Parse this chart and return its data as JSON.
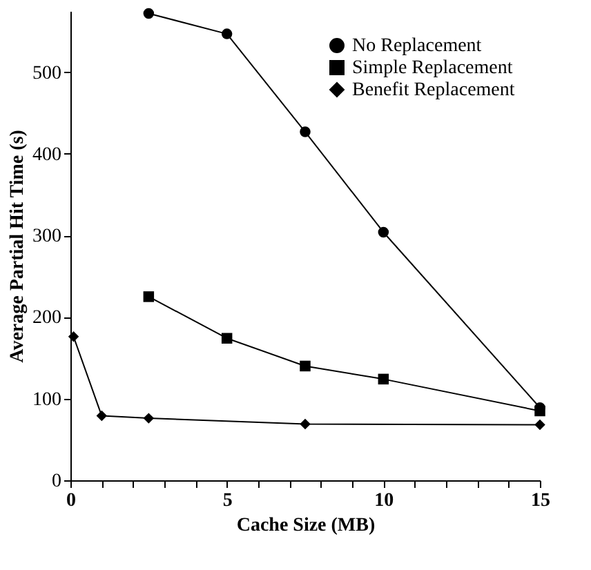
{
  "chart_data": {
    "type": "line",
    "xlabel": "Cache Size (MB)",
    "ylabel": "Average Partial Hit Time (s)",
    "xlim": [
      0,
      15
    ],
    "ylim": [
      0,
      575
    ],
    "xticks": [
      0,
      {
        "value": 1,
        "label": null
      },
      {
        "value": 2,
        "label": null
      },
      {
        "value": 3,
        "label": null
      },
      {
        "value": 4,
        "label": null
      },
      5,
      {
        "value": 6,
        "label": null
      },
      {
        "value": 7,
        "label": null
      },
      {
        "value": 8,
        "label": null
      },
      {
        "value": 9,
        "label": null
      },
      10,
      {
        "value": 11,
        "label": null
      },
      {
        "value": 12,
        "label": null
      },
      {
        "value": 13,
        "label": null
      },
      {
        "value": 14,
        "label": null
      },
      15
    ],
    "yticks": [
      0,
      100,
      200,
      300,
      400,
      500
    ],
    "legend": "top right",
    "grid": false,
    "series": [
      {
        "name": "No Replacement",
        "color": "#000000",
        "marker": "circle",
        "x": [
          2.5,
          5,
          7.5,
          10,
          15
        ],
        "values": [
          572,
          547,
          427,
          304,
          89
        ]
      },
      {
        "name": "Simple Replacement",
        "color": "#000000",
        "marker": "square",
        "x": [
          2.5,
          5,
          7.5,
          10,
          15
        ],
        "values": [
          225,
          174,
          140,
          124,
          85
        ]
      },
      {
        "name": "Benefit Replacement",
        "color": "#000000",
        "marker": "diamond",
        "x": [
          0.1,
          1,
          2.5,
          7.5,
          15
        ],
        "values": [
          176,
          79,
          76,
          69,
          68
        ]
      }
    ]
  }
}
